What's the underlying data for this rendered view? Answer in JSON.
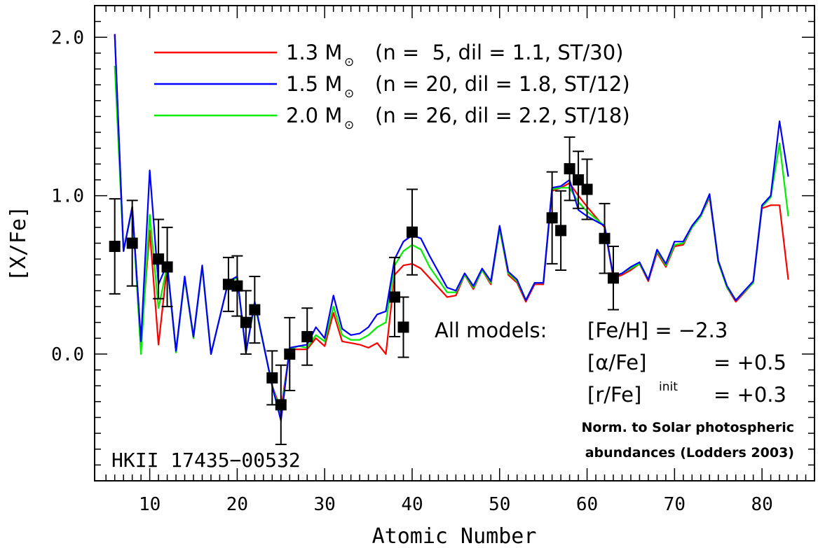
{
  "chart_data": {
    "type": "line",
    "title": "",
    "xlabel": "Atomic Number",
    "ylabel": "[X/Fe]",
    "xlim": [
      3.7,
      86
    ],
    "ylim": [
      -0.8,
      2.2
    ],
    "x_ticks": [
      10,
      20,
      30,
      40,
      50,
      60,
      70,
      80
    ],
    "x_tick_labels": [
      "10",
      "20",
      "30",
      "40",
      "50",
      "60",
      "70",
      "80"
    ],
    "y_ticks": [
      0.0,
      1.0,
      2.0
    ],
    "y_tick_labels": [
      "0.0",
      "1.0",
      "2.0"
    ],
    "grid": false,
    "legend_position": "top-left",
    "legend": [
      {
        "mass": "1.3 M",
        "params": "(n =  5, dil = 1.1, ST/30)",
        "color": "#ff0000"
      },
      {
        "mass": "1.5 M",
        "params": "(n = 20, dil = 1.8, ST/12)",
        "color": "#0000ff"
      },
      {
        "mass": "2.0 M",
        "params": "(n = 26, dil = 2.2, ST/18)",
        "color": "#00ee00"
      }
    ],
    "legend_subscript": "⊙",
    "annotations": {
      "models_label": "All models:",
      "feh": "[Fe/H] = −2.3",
      "alpha_lhs": "[α/Fe]",
      "alpha_rhs": "= +0.5",
      "rfe_lhs": "[r/Fe]",
      "rfe_sup": "init",
      "rfe_rhs": "= +0.3",
      "norm_line1": "Norm. to Solar photospheric",
      "norm_line2": "abundances (Lodders 2003)",
      "star": "HKII 17435−00532"
    },
    "series": [
      {
        "color": "#ff0000",
        "x": [
          6,
          7,
          8,
          9,
          10,
          11,
          12,
          13,
          14,
          15,
          16,
          17,
          19,
          20,
          21,
          22,
          24,
          25,
          26,
          27,
          28,
          29,
          30,
          31,
          32,
          33,
          34,
          35,
          36,
          37,
          38,
          39,
          40,
          41,
          42,
          44,
          45,
          46,
          47,
          48,
          49,
          50,
          51,
          52,
          53,
          54,
          55,
          56,
          57,
          58,
          59,
          60,
          62,
          63,
          64,
          65,
          66,
          67,
          68,
          69,
          70,
          71,
          72,
          73,
          74,
          75,
          76,
          77,
          79,
          80,
          81,
          82,
          83
        ],
        "y": [
          2.02,
          0.65,
          0.93,
          0.08,
          0.78,
          0.06,
          0.56,
          0.01,
          0.48,
          0.1,
          0.55,
          0.0,
          0.46,
          0.48,
          0.01,
          0.32,
          -0.2,
          -0.35,
          0.03,
          0.03,
          0.03,
          0.1,
          0.05,
          0.26,
          0.08,
          0.07,
          0.06,
          0.04,
          0.07,
          0.0,
          0.5,
          0.56,
          0.57,
          0.54,
          0.48,
          0.36,
          0.37,
          0.5,
          0.41,
          0.53,
          0.44,
          0.79,
          0.5,
          0.45,
          0.33,
          0.44,
          0.44,
          1.03,
          1.05,
          1.08,
          1.0,
          0.93,
          0.8,
          0.48,
          0.5,
          0.53,
          0.57,
          0.46,
          0.64,
          0.55,
          0.68,
          0.69,
          0.8,
          0.87,
          0.99,
          0.58,
          0.42,
          0.33,
          0.45,
          0.92,
          0.94,
          0.94,
          0.47
        ]
      },
      {
        "color": "#00ee00",
        "x": [
          6,
          7,
          8,
          9,
          10,
          11,
          12,
          13,
          14,
          15,
          16,
          17,
          19,
          20,
          21,
          22,
          24,
          25,
          26,
          27,
          28,
          29,
          30,
          31,
          32,
          33,
          34,
          35,
          36,
          37,
          38,
          39,
          40,
          41,
          42,
          44,
          45,
          46,
          47,
          48,
          49,
          50,
          51,
          52,
          53,
          54,
          55,
          56,
          57,
          58,
          59,
          60,
          62,
          63,
          64,
          65,
          66,
          67,
          68,
          69,
          70,
          71,
          72,
          73,
          74,
          75,
          76,
          77,
          79,
          80,
          81,
          82,
          83
        ],
        "y": [
          1.82,
          0.65,
          0.92,
          0.0,
          0.88,
          0.29,
          0.56,
          0.01,
          0.48,
          0.1,
          0.55,
          0.0,
          0.46,
          0.48,
          0.01,
          0.32,
          -0.2,
          -0.38,
          0.03,
          0.05,
          0.04,
          0.12,
          0.08,
          0.3,
          0.12,
          0.09,
          0.09,
          0.12,
          0.17,
          0.2,
          0.56,
          0.65,
          0.69,
          0.66,
          0.55,
          0.39,
          0.39,
          0.5,
          0.42,
          0.53,
          0.45,
          0.79,
          0.51,
          0.46,
          0.34,
          0.45,
          0.45,
          1.04,
          1.05,
          1.05,
          0.96,
          0.9,
          0.81,
          0.49,
          0.51,
          0.54,
          0.57,
          0.47,
          0.65,
          0.56,
          0.69,
          0.7,
          0.8,
          0.87,
          1.0,
          0.58,
          0.42,
          0.34,
          0.45,
          0.93,
          0.99,
          1.33,
          0.87
        ]
      },
      {
        "color": "#0000ff",
        "x": [
          6,
          7,
          8,
          9,
          10,
          11,
          12,
          13,
          14,
          15,
          16,
          17,
          19,
          20,
          21,
          22,
          24,
          25,
          26,
          27,
          28,
          29,
          30,
          31,
          32,
          33,
          34,
          35,
          36,
          37,
          38,
          39,
          40,
          41,
          42,
          44,
          45,
          46,
          47,
          48,
          49,
          50,
          51,
          52,
          53,
          54,
          55,
          56,
          57,
          58,
          59,
          60,
          62,
          63,
          64,
          65,
          66,
          67,
          68,
          69,
          70,
          71,
          72,
          73,
          74,
          75,
          76,
          77,
          79,
          80,
          81,
          82,
          83
        ],
        "y": [
          2.02,
          0.65,
          0.93,
          0.08,
          1.16,
          0.44,
          0.57,
          0.02,
          0.49,
          0.11,
          0.56,
          0.0,
          0.46,
          0.49,
          0.01,
          0.33,
          -0.2,
          -0.42,
          0.04,
          0.05,
          0.06,
          0.17,
          0.1,
          0.37,
          0.16,
          0.12,
          0.13,
          0.17,
          0.25,
          0.27,
          0.6,
          0.71,
          0.75,
          0.73,
          0.62,
          0.42,
          0.4,
          0.51,
          0.43,
          0.54,
          0.46,
          0.81,
          0.52,
          0.47,
          0.34,
          0.45,
          0.45,
          1.05,
          1.06,
          1.1,
          0.91,
          0.87,
          0.81,
          0.49,
          0.51,
          0.55,
          0.58,
          0.47,
          0.66,
          0.57,
          0.71,
          0.71,
          0.81,
          0.88,
          1.01,
          0.59,
          0.43,
          0.34,
          0.46,
          0.94,
          1.0,
          1.47,
          1.12
        ]
      }
    ],
    "observations": {
      "x": [
        6,
        8,
        11,
        12,
        19,
        20,
        21,
        22,
        24,
        25,
        26,
        28,
        38,
        39,
        40,
        56,
        57,
        58,
        59,
        60,
        62,
        63
      ],
      "y": [
        0.68,
        0.7,
        0.6,
        0.55,
        0.44,
        0.43,
        0.2,
        0.28,
        -0.15,
        -0.32,
        0.0,
        0.11,
        0.36,
        0.17,
        0.77,
        0.86,
        0.78,
        1.17,
        1.1,
        1.04,
        0.73,
        0.48
      ],
      "err": [
        0.3,
        0.27,
        0.25,
        0.25,
        0.17,
        0.19,
        0.2,
        0.21,
        0.17,
        0.25,
        0.23,
        0.18,
        0.25,
        0.19,
        0.27,
        0.29,
        0.25,
        0.2,
        0.18,
        0.19,
        0.22,
        0.2
      ]
    }
  }
}
